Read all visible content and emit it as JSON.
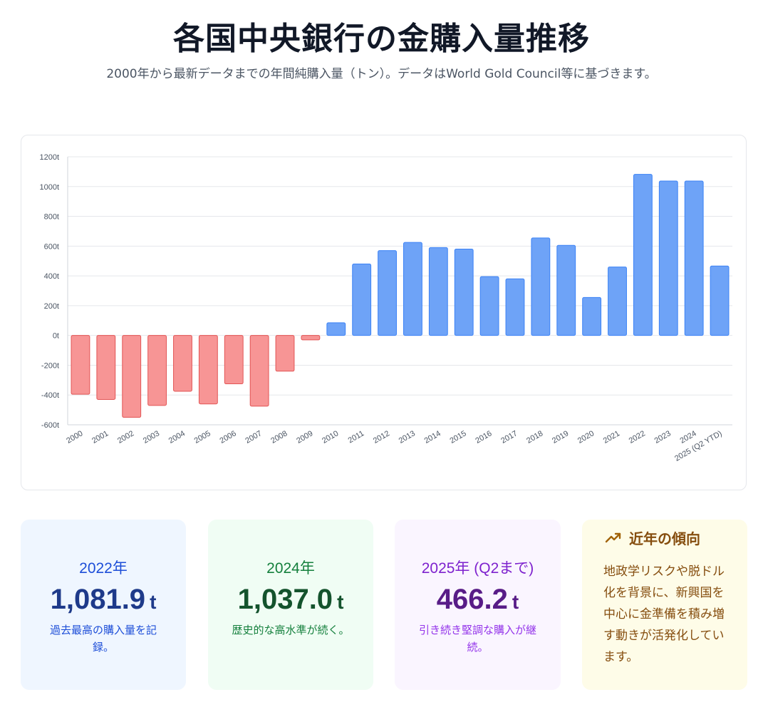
{
  "header": {
    "title": "各国中央銀行の金購入量推移",
    "subtitle": "2000年から最新データまでの年間純購入量（トン）。データはWorld Gold Council等に基づきます。"
  },
  "chart_data": {
    "type": "bar",
    "categories": [
      "2000",
      "2001",
      "2002",
      "2003",
      "2004",
      "2005",
      "2006",
      "2007",
      "2008",
      "2009",
      "2010",
      "2011",
      "2012",
      "2013",
      "2014",
      "2015",
      "2016",
      "2017",
      "2018",
      "2019",
      "2020",
      "2021",
      "2022",
      "2023",
      "2024",
      "2025 (Q2 YTD)"
    ],
    "values": [
      -395,
      -430,
      -550,
      -470,
      -375,
      -460,
      -325,
      -475,
      -240,
      -30,
      85,
      480,
      570,
      625,
      590,
      580,
      395,
      380,
      655,
      605,
      255,
      460,
      1081.9,
      1037,
      1037,
      466.2
    ],
    "y_ticks": [
      "1200t",
      "1000t",
      "800t",
      "600t",
      "400t",
      "200t",
      "0t",
      "-200t",
      "-400t",
      "-600t"
    ],
    "ylim": [
      -600,
      1200
    ],
    "grid": true,
    "colors": {
      "positive_fill": "#6ea3f7",
      "positive_stroke": "#3b82f6",
      "negative_fill": "#f79595",
      "negative_stroke": "#e25555"
    },
    "xlabel": "",
    "ylabel": ""
  },
  "stats": [
    {
      "year": "2022年",
      "value": "1,081.9",
      "unit": "t",
      "note": "過去最高の購入量を記録。"
    },
    {
      "year": "2024年",
      "value": "1,037.0",
      "unit": "t",
      "note": "歴史的な高水準が続く。"
    },
    {
      "year": "2025年 (Q2まで)",
      "value": "466.2",
      "unit": "t",
      "note": "引き続き堅調な購入が継続。"
    }
  ],
  "trend": {
    "icon": "trending-up-icon",
    "title": "近年の傾向",
    "body": "地政学リスクや脱ドル化を背景に、新興国を中心に金準備を積み増す動きが活発化しています。"
  }
}
